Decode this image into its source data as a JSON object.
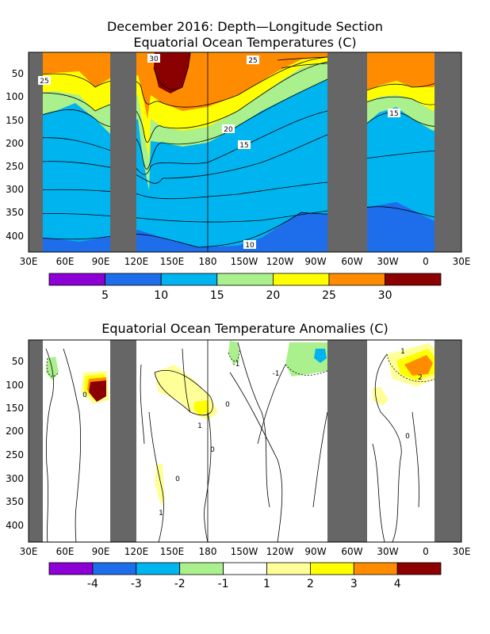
{
  "chart_data": [
    {
      "type": "heatmap",
      "title": "December 2016: Depth—Longitude Section",
      "subtitle": "Equatorial Ocean Temperatures (C)",
      "y_ticks": [
        "50",
        "100",
        "150",
        "200",
        "250",
        "300",
        "350",
        "400"
      ],
      "x_ticks": [
        "30E",
        "60E",
        "90E",
        "120E",
        "150E",
        "180",
        "150W",
        "120W",
        "90W",
        "60W",
        "30W",
        "0",
        "30E"
      ],
      "colorbar_labels": [
        "5",
        "10",
        "15",
        "20",
        "25",
        "30"
      ],
      "colorbar_colors": [
        "#8c00d6",
        "#1e6eeb",
        "#00b4f0",
        "#aaf08c",
        "#ffff00",
        "#ff8c00",
        "#8b0000"
      ],
      "contour_labels": [
        "30",
        "25",
        "25",
        "20",
        "15",
        "15",
        "10"
      ],
      "land_masks": [
        [
          30,
          42
        ],
        [
          100,
          122
        ],
        [
          295,
          317
        ],
        [
          358,
          372
        ]
      ],
      "longitude_line": 180,
      "depth_range": [
        0,
        435
      ]
    },
    {
      "type": "heatmap",
      "title": "Equatorial Ocean Temperature Anomalies (C)",
      "y_ticks": [
        "50",
        "100",
        "150",
        "200",
        "250",
        "300",
        "350",
        "400"
      ],
      "x_ticks": [
        "30E",
        "60E",
        "90E",
        "120E",
        "150E",
        "180",
        "150W",
        "120W",
        "90W",
        "60W",
        "30W",
        "0",
        "30E"
      ],
      "colorbar_labels": [
        "-4",
        "-3",
        "-2",
        "-1",
        "1",
        "2",
        "3",
        "4"
      ],
      "colorbar_colors": [
        "#8c00d6",
        "#1e6eeb",
        "#00b4f0",
        "#aaf08c",
        "#ffffff",
        "#ffff99",
        "#ffff00",
        "#ff8c00",
        "#8b0000"
      ],
      "contour_labels": [
        "0",
        "1",
        "-1",
        "-1",
        "1",
        "2",
        "0",
        "0",
        "0",
        "1",
        "0"
      ],
      "land_masks": [
        [
          30,
          42
        ],
        [
          100,
          122
        ],
        [
          295,
          317
        ],
        [
          358,
          372
        ]
      ],
      "longitude_line": 180,
      "depth_range": [
        0,
        435
      ]
    }
  ]
}
